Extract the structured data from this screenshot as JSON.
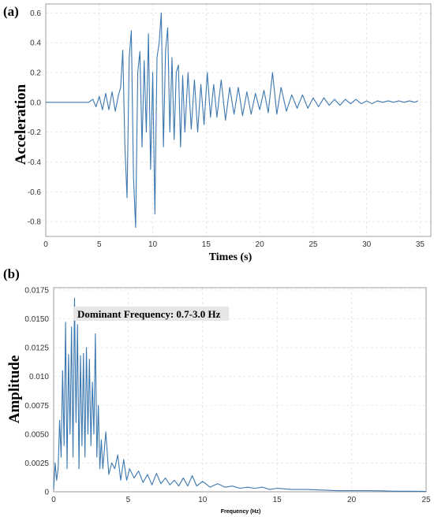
{
  "chart_data": [
    {
      "panel": "(a)",
      "type": "line",
      "xlabel": "Times (s)",
      "ylabel": "Acceleration",
      "xlim": [
        0,
        36
      ],
      "ylim": [
        -0.9,
        0.66
      ],
      "xticks": [
        "0",
        "5",
        "10",
        "15",
        "20",
        "25",
        "30",
        "35"
      ],
      "yticks": [
        "-0.8",
        "-0.6",
        "-0.4",
        "-0.2",
        "0.0",
        "0.2",
        "0.4",
        "0.6"
      ],
      "grid": true,
      "series_color": "#3c78b0",
      "x": [
        0,
        4.0,
        4.4,
        4.7,
        5.0,
        5.3,
        5.6,
        5.9,
        6.2,
        6.5,
        6.8,
        7.0,
        7.2,
        7.4,
        7.6,
        7.8,
        8.0,
        8.2,
        8.4,
        8.6,
        8.8,
        9.0,
        9.2,
        9.4,
        9.6,
        9.8,
        10.0,
        10.2,
        10.4,
        10.6,
        10.8,
        11.0,
        11.2,
        11.4,
        11.6,
        11.8,
        12.0,
        12.2,
        12.4,
        12.6,
        12.8,
        13.0,
        13.3,
        13.6,
        13.9,
        14.2,
        14.5,
        14.8,
        15.1,
        15.4,
        15.7,
        16.0,
        16.4,
        16.8,
        17.2,
        17.6,
        18.0,
        18.4,
        18.8,
        19.2,
        19.6,
        20.0,
        20.4,
        20.8,
        21.2,
        21.6,
        22.0,
        22.5,
        23.0,
        23.5,
        24.0,
        24.5,
        25.0,
        25.5,
        26.0,
        26.5,
        27.0,
        27.5,
        28.0,
        28.5,
        29.0,
        29.5,
        30.0,
        30.5,
        31.0,
        31.5,
        32.0,
        32.5,
        33.0,
        33.5,
        34.0,
        34.5,
        34.8
      ],
      "y": [
        0,
        0.0,
        0.02,
        -0.03,
        0.04,
        -0.05,
        0.06,
        -0.05,
        0.07,
        -0.06,
        0.05,
        0.1,
        0.35,
        -0.3,
        -0.64,
        0.3,
        0.48,
        -0.5,
        -0.84,
        0.2,
        0.34,
        -0.3,
        0.28,
        -0.2,
        0.46,
        -0.45,
        0.2,
        -0.75,
        0.3,
        0.4,
        0.6,
        -0.3,
        0.35,
        0.5,
        -0.2,
        0.3,
        -0.25,
        0.2,
        0.25,
        -0.3,
        0.18,
        -0.2,
        0.2,
        -0.18,
        0.15,
        -0.2,
        0.12,
        -0.15,
        0.2,
        -0.1,
        0.12,
        -0.1,
        0.15,
        -0.12,
        0.1,
        -0.08,
        0.1,
        -0.09,
        0.07,
        -0.08,
        0.06,
        -0.05,
        0.08,
        -0.07,
        0.2,
        -0.08,
        0.1,
        -0.06,
        0.05,
        -0.04,
        0.05,
        -0.04,
        0.03,
        -0.03,
        0.03,
        -0.02,
        0.02,
        -0.02,
        0.02,
        -0.01,
        0.02,
        -0.01,
        0.01,
        -0.01,
        0.01,
        0.0,
        0.01,
        0.0,
        0.01,
        0.0,
        0.01,
        0.0,
        0.01
      ]
    },
    {
      "panel": "(b)",
      "type": "line",
      "xlabel": "Frequency (Hz)",
      "ylabel": "Amplitude",
      "xlim": [
        0,
        25
      ],
      "ylim": [
        0,
        0.0177
      ],
      "xticks": [
        "0",
        "5",
        "10",
        "15",
        "20",
        "25"
      ],
      "yticks": [
        "0",
        "0.0025",
        "0.0050",
        "0.0075",
        "0.010",
        "0.0125",
        "0.0150",
        "0.0175"
      ],
      "grid": true,
      "series_color": "#3c78b0",
      "annotation": "Dominant Frequency: 0.7-3.0 Hz",
      "x": [
        0,
        0.1,
        0.2,
        0.3,
        0.4,
        0.5,
        0.6,
        0.7,
        0.8,
        0.9,
        1.0,
        1.1,
        1.2,
        1.3,
        1.4,
        1.5,
        1.6,
        1.7,
        1.8,
        1.9,
        2.0,
        2.1,
        2.2,
        2.3,
        2.4,
        2.5,
        2.6,
        2.7,
        2.8,
        2.9,
        3.0,
        3.1,
        3.2,
        3.3,
        3.5,
        3.7,
        3.9,
        4.1,
        4.3,
        4.5,
        4.7,
        4.9,
        5.1,
        5.4,
        5.7,
        6.0,
        6.3,
        6.6,
        6.9,
        7.2,
        7.5,
        7.8,
        8.1,
        8.4,
        8.7,
        9.0,
        9.3,
        9.6,
        10.0,
        10.5,
        11.0,
        11.5,
        12.0,
        12.5,
        13.0,
        13.5,
        14.0,
        14.5,
        15.0,
        16.0,
        17.0,
        18.0,
        19.0,
        20.0,
        21.0,
        22.0,
        23.0,
        24.0,
        25.0
      ],
      "y": [
        0.0002,
        0.0025,
        0.001,
        0.002,
        0.0062,
        0.003,
        0.0105,
        0.004,
        0.0147,
        0.002,
        0.0119,
        0.005,
        0.0143,
        0.003,
        0.0168,
        0.006,
        0.0145,
        0.002,
        0.0118,
        0.004,
        0.012,
        0.003,
        0.0125,
        0.005,
        0.0115,
        0.004,
        0.0095,
        0.005,
        0.0137,
        0.003,
        0.0075,
        0.002,
        0.0045,
        0.002,
        0.0052,
        0.0015,
        0.0025,
        0.002,
        0.0032,
        0.001,
        0.0028,
        0.001,
        0.002,
        0.0012,
        0.0018,
        0.0008,
        0.0015,
        0.0006,
        0.0016,
        0.0007,
        0.0012,
        0.0006,
        0.001,
        0.0005,
        0.0012,
        0.0005,
        0.0014,
        0.0005,
        0.0009,
        0.0004,
        0.0007,
        0.0004,
        0.0005,
        0.0003,
        0.0004,
        0.0003,
        0.0004,
        0.0002,
        0.0003,
        0.0002,
        0.0002,
        0.00015,
        0.0001,
        0.0001,
        0.0001,
        8e-05,
        5e-05,
        5e-05,
        3e-05
      ]
    }
  ]
}
